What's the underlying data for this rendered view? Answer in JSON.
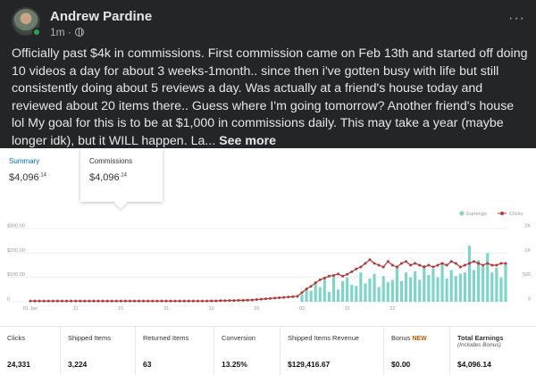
{
  "post": {
    "author": "Andrew Pardine",
    "time": "1m ·",
    "body": "Officially past $4k in commissions. First commission came on Feb 13th and started off doing 10 videos a day for about 3 weeks-1month.. since then i've gotten busy with life but still consistently doing about 5 reviews a day. Was actually at a friend's house today and reviewed about 20 items there.. Guess where I'm going tomorrow? Another friend's house lol My goal for this is to be at $1,000 in commissions daily. This may take a year (maybe longer idk), but it WILL happen. La...",
    "see_more": "See more",
    "more_glyph": "···"
  },
  "tabs": {
    "summary_label": "Summary",
    "summary_dollars": "$4,096",
    "summary_cents": ".14",
    "commissions_label": "Commissions",
    "commissions_dollars": "$4,096",
    "commissions_cents": ".14"
  },
  "stats": [
    {
      "label": "Clicks",
      "value": "24,331"
    },
    {
      "label": "Shipped Items",
      "value": "3,224"
    },
    {
      "label": "Returned Items",
      "value": "63"
    },
    {
      "label": "Conversion",
      "value": "13.25%"
    },
    {
      "label": "Shipped Items Revenue",
      "value": "$129,416.67"
    },
    {
      "label": "Bonus",
      "badge": "NEW",
      "value": "$0.00"
    },
    {
      "label": "Total Earnings",
      "sub": "(Includes Bonus)",
      "value": "$4,096.14"
    }
  ],
  "chart_data": {
    "type": "bar",
    "colors": {
      "earnings": "#7fd4c8",
      "clicks": "#b03a3a",
      "grid": "#e6e6e6",
      "tick": "#999999"
    },
    "legend": {
      "position": "top-right",
      "entries": [
        "Earnings",
        "Clicks"
      ]
    },
    "y_left": {
      "ticks": [
        "$300.00",
        "$200.00",
        "$100.00",
        "0"
      ],
      "range": [
        0,
        300
      ]
    },
    "y_right": {
      "ticks": [
        "2K",
        "1K",
        "500",
        "0"
      ],
      "range": [
        0,
        2000
      ]
    },
    "x_ticks": [
      {
        "label": "01 Jan",
        "index": 0
      },
      {
        "label": "11",
        "index": 10
      },
      {
        "label": "21",
        "index": 20
      },
      {
        "label": "31",
        "index": 30
      },
      {
        "label": "10",
        "index": 40
      },
      {
        "label": "20",
        "index": 50
      },
      {
        "label": "02",
        "index": 60
      },
      {
        "label": "12",
        "index": 70
      },
      {
        "label": "22",
        "index": 80
      }
    ],
    "earnings": [
      0,
      0,
      0,
      0,
      0,
      0,
      0,
      0,
      0,
      0,
      0,
      0,
      0,
      0,
      0,
      0,
      0,
      0,
      0,
      0,
      0,
      0,
      0,
      0,
      0,
      0,
      0,
      0,
      0,
      0,
      0,
      0,
      0,
      0,
      0,
      0,
      0,
      0,
      0,
      0,
      0,
      0,
      0,
      0,
      0,
      0,
      0,
      0,
      0,
      0,
      0,
      0,
      0,
      0,
      0,
      0,
      0,
      0,
      0,
      0,
      30,
      55,
      45,
      80,
      60,
      95,
      40,
      110,
      50,
      85,
      100,
      70,
      65,
      120,
      75,
      95,
      115,
      60,
      105,
      80,
      90,
      140,
      85,
      120,
      100,
      125,
      90,
      150,
      110,
      135,
      100,
      160,
      95,
      130,
      105,
      115,
      120,
      230,
      130,
      170,
      145,
      200,
      120,
      140,
      100,
      155
    ],
    "clicks": [
      20,
      20,
      20,
      20,
      20,
      20,
      20,
      20,
      20,
      20,
      20,
      20,
      20,
      20,
      20,
      20,
      20,
      20,
      20,
      20,
      20,
      20,
      20,
      20,
      20,
      20,
      20,
      20,
      20,
      20,
      20,
      20,
      20,
      20,
      20,
      20,
      20,
      20,
      20,
      20,
      25,
      25,
      30,
      30,
      35,
      35,
      40,
      40,
      45,
      50,
      60,
      70,
      80,
      90,
      100,
      110,
      120,
      130,
      140,
      150,
      250,
      350,
      420,
      520,
      600,
      650,
      700,
      720,
      760,
      700,
      750,
      820,
      900,
      950,
      1050,
      1150,
      1050,
      1000,
      950,
      1100,
      1000,
      950,
      1050,
      1100,
      1000,
      1050,
      1000,
      950,
      1000,
      950,
      1000,
      1050,
      1000,
      1100,
      1050,
      950,
      1000,
      1050,
      1100,
      1050,
      1000,
      1050,
      1000,
      1000,
      1050,
      1050
    ]
  }
}
